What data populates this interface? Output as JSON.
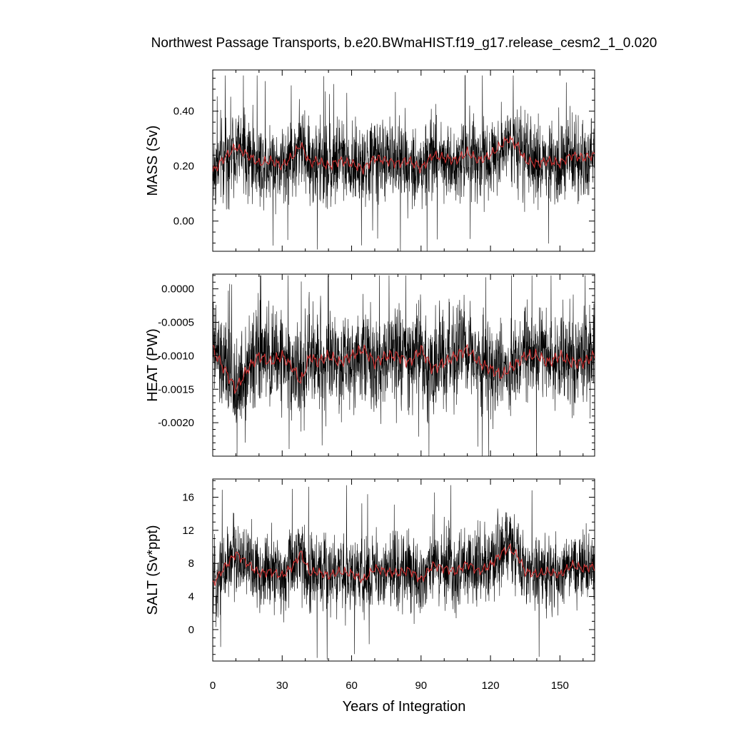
{
  "chart_data": {
    "type": "line",
    "title": "Northwest Passage Transports, b.e20.BWmaHIST.f19_g17.release_cesm2_1_0.020",
    "xlabel": "Years of Integration",
    "x_ticks": [
      "0",
      "30",
      "60",
      "90",
      "120",
      "150"
    ],
    "x_tick_values": [
      0,
      30,
      60,
      90,
      120,
      150
    ],
    "xlim": [
      0,
      165
    ],
    "raw_color": "#000000",
    "smooth_color": "#d03030",
    "panels": [
      {
        "name": "mass",
        "ylabel": "MASS (Sv)",
        "ylim": [
          -0.11,
          0.55
        ],
        "y_ticks": [
          "0.00",
          "0.20",
          "0.40"
        ],
        "y_tick_values": [
          0.0,
          0.2,
          0.4
        ],
        "minor_step": 0.04,
        "raw_mean": 0.21,
        "raw_amp": 0.21,
        "raw_min": -0.11,
        "raw_max": 0.53,
        "series": [
          {
            "name": "",
            "role": "smoothed",
            "x": [
              0,
              5,
              10,
              15,
              20,
              25,
              30,
              35,
              38,
              42,
              45,
              50,
              55,
              60,
              65,
              70,
              75,
              80,
              85,
              90,
              95,
              100,
              105,
              110,
              115,
              120,
              125,
              128,
              132,
              135,
              140,
              145,
              150,
              155,
              160,
              165
            ],
            "values": [
              0.18,
              0.23,
              0.27,
              0.24,
              0.21,
              0.22,
              0.2,
              0.24,
              0.28,
              0.21,
              0.22,
              0.2,
              0.22,
              0.21,
              0.19,
              0.23,
              0.22,
              0.21,
              0.22,
              0.19,
              0.24,
              0.23,
              0.22,
              0.25,
              0.22,
              0.24,
              0.28,
              0.3,
              0.27,
              0.22,
              0.21,
              0.22,
              0.21,
              0.24,
              0.23,
              0.24
            ]
          }
        ]
      },
      {
        "name": "heat",
        "ylabel": "HEAT (PW)",
        "ylim": [
          -0.0025,
          0.00022
        ],
        "y_ticks": [
          "0.0000",
          "-0.0005",
          "-0.0010",
          "-0.0015",
          "-0.0020"
        ],
        "y_tick_values": [
          0.0,
          -0.0005,
          -0.001,
          -0.0015,
          -0.002
        ],
        "minor_step": 0.0001,
        "raw_mean": -0.00105,
        "raw_amp": 0.00105,
        "raw_min": -0.0025,
        "raw_max": 0.0002,
        "series": [
          {
            "name": "",
            "role": "smoothed",
            "x": [
              0,
              5,
              10,
              15,
              20,
              25,
              30,
              35,
              38,
              42,
              45,
              50,
              55,
              60,
              65,
              70,
              75,
              80,
              85,
              90,
              95,
              100,
              105,
              110,
              115,
              120,
              125,
              128,
              132,
              135,
              140,
              145,
              150,
              155,
              160,
              165
            ],
            "values": [
              -0.0009,
              -0.0012,
              -0.0015,
              -0.0012,
              -0.001,
              -0.0011,
              -0.001,
              -0.0012,
              -0.0014,
              -0.001,
              -0.0011,
              -0.001,
              -0.0011,
              -0.001,
              -0.0009,
              -0.0011,
              -0.001,
              -0.001,
              -0.0011,
              -0.0009,
              -0.0012,
              -0.0011,
              -0.001,
              -0.0009,
              -0.0011,
              -0.0012,
              -0.0013,
              -0.0012,
              -0.0011,
              -0.001,
              -0.001,
              -0.0011,
              -0.001,
              -0.0011,
              -0.0011,
              -0.001
            ]
          }
        ]
      },
      {
        "name": "salt",
        "ylabel": "SALT (Sv*ppt)",
        "ylim": [
          -3.8,
          18.2
        ],
        "y_ticks": [
          "0",
          "4",
          "8",
          "12",
          "16"
        ],
        "y_tick_values": [
          0,
          4,
          8,
          12,
          16
        ],
        "minor_step": 1,
        "raw_mean": 6.9,
        "raw_amp": 6.6,
        "raw_min": -3.8,
        "raw_max": 17.6,
        "series": [
          {
            "name": "",
            "role": "smoothed",
            "x": [
              0,
              5,
              10,
              15,
              20,
              25,
              30,
              35,
              38,
              42,
              45,
              50,
              55,
              60,
              65,
              70,
              75,
              80,
              85,
              90,
              95,
              100,
              105,
              110,
              115,
              120,
              125,
              128,
              132,
              135,
              140,
              145,
              150,
              155,
              160,
              165
            ],
            "values": [
              5.5,
              7.5,
              9.2,
              8.0,
              6.8,
              7.0,
              6.5,
              7.8,
              9.3,
              6.8,
              7.0,
              6.5,
              7.0,
              6.8,
              6.0,
              7.4,
              7.0,
              6.8,
              7.2,
              6.0,
              7.8,
              7.4,
              7.0,
              8.0,
              7.0,
              7.8,
              9.3,
              9.9,
              8.8,
              7.0,
              6.7,
              7.0,
              6.6,
              7.8,
              7.4,
              7.6
            ]
          }
        ]
      }
    ]
  }
}
